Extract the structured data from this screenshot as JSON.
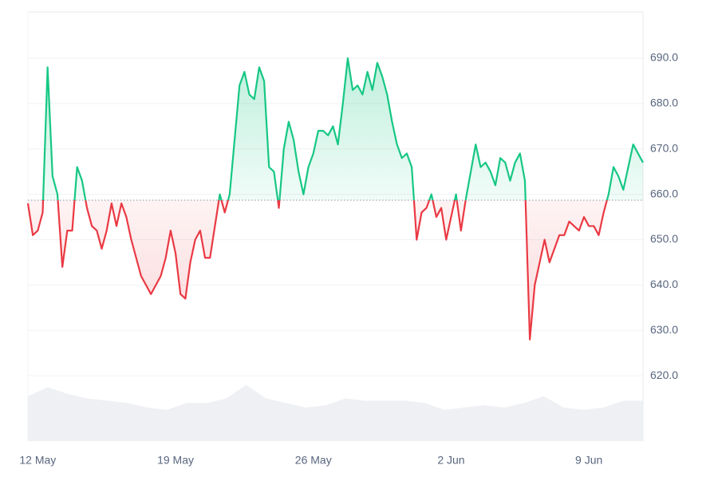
{
  "chart_data": {
    "type": "baseline-line",
    "categories": [
      null,
      null,
      "12 May",
      null,
      null,
      null,
      null,
      null,
      null,
      null,
      null,
      null,
      null,
      null,
      null,
      null,
      null,
      null,
      null,
      null,
      null,
      null,
      null,
      null,
      null,
      null,
      null,
      null,
      null,
      null,
      "19 May",
      null,
      null,
      null,
      null,
      null,
      null,
      null,
      null,
      null,
      null,
      null,
      null,
      null,
      null,
      null,
      null,
      null,
      null,
      null,
      null,
      null,
      null,
      null,
      null,
      null,
      null,
      null,
      "26 May",
      null,
      null,
      null,
      null,
      null,
      null,
      null,
      null,
      null,
      null,
      null,
      null,
      null,
      null,
      null,
      null,
      null,
      null,
      null,
      null,
      null,
      null,
      null,
      null,
      null,
      null,
      null,
      "2 Jun",
      null,
      null,
      null,
      null,
      null,
      null,
      null,
      null,
      null,
      null,
      null,
      null,
      null,
      null,
      null,
      null,
      null,
      null,
      null,
      null,
      null,
      null,
      null,
      null,
      null,
      null,
      null,
      "9 Jun",
      null,
      null,
      null,
      null,
      null,
      null,
      null,
      null,
      null,
      null,
      null
    ],
    "series": [
      {
        "values": [
          658,
          651,
          652,
          656,
          688,
          664,
          660,
          644,
          652,
          652,
          666,
          663,
          657,
          653,
          652,
          648,
          652,
          658,
          653,
          658,
          655,
          650,
          646,
          642,
          640,
          638,
          640,
          642,
          646,
          652,
          647,
          638,
          637,
          645,
          650,
          652,
          646,
          646,
          653,
          660,
          656,
          660,
          672,
          684,
          687,
          682,
          681,
          688,
          685,
          666,
          665,
          657,
          670,
          676,
          672,
          665,
          660,
          666,
          669,
          674,
          674,
          673,
          675,
          671,
          680,
          690,
          683,
          684,
          682,
          687,
          683,
          689,
          686,
          682,
          676,
          671,
          668,
          669,
          666,
          650,
          656,
          657,
          660,
          655,
          657,
          650,
          655,
          660,
          652,
          659,
          665,
          671,
          666,
          667,
          665,
          662,
          668,
          667,
          663,
          667,
          669,
          663,
          628,
          640,
          645,
          650,
          645,
          648,
          651,
          651,
          654,
          653,
          652,
          655,
          653,
          653,
          651,
          656,
          660,
          666,
          664,
          661,
          666,
          671,
          669,
          667
        ],
        "color_above": "#16c784",
        "color_below": "#ea3943"
      }
    ],
    "baseline": 658.7,
    "volume": {
      "values": [
        615.5,
        617.5,
        616,
        615,
        614.5,
        614,
        613,
        612.5,
        614,
        614,
        615,
        618,
        615,
        614,
        613,
        613.5,
        615,
        614.5,
        614.5,
        614.5,
        614,
        612.5,
        613,
        613.5,
        613,
        614,
        615.5,
        613,
        612.5,
        613,
        614.5,
        614.5
      ],
      "color": "#eef0f3"
    },
    "ylim": [
      605.6,
      700.2
    ],
    "yticks": [
      {
        "value": 620,
        "label": "620.0"
      },
      {
        "value": 630,
        "label": "630.0"
      },
      {
        "value": 640,
        "label": "640.0"
      },
      {
        "value": 650,
        "label": "650.0"
      },
      {
        "value": 660,
        "label": "660.0"
      },
      {
        "value": 670,
        "label": "670.0"
      },
      {
        "value": 680,
        "label": "680.0"
      },
      {
        "value": 690,
        "label": "690.0"
      }
    ],
    "grid": true
  }
}
